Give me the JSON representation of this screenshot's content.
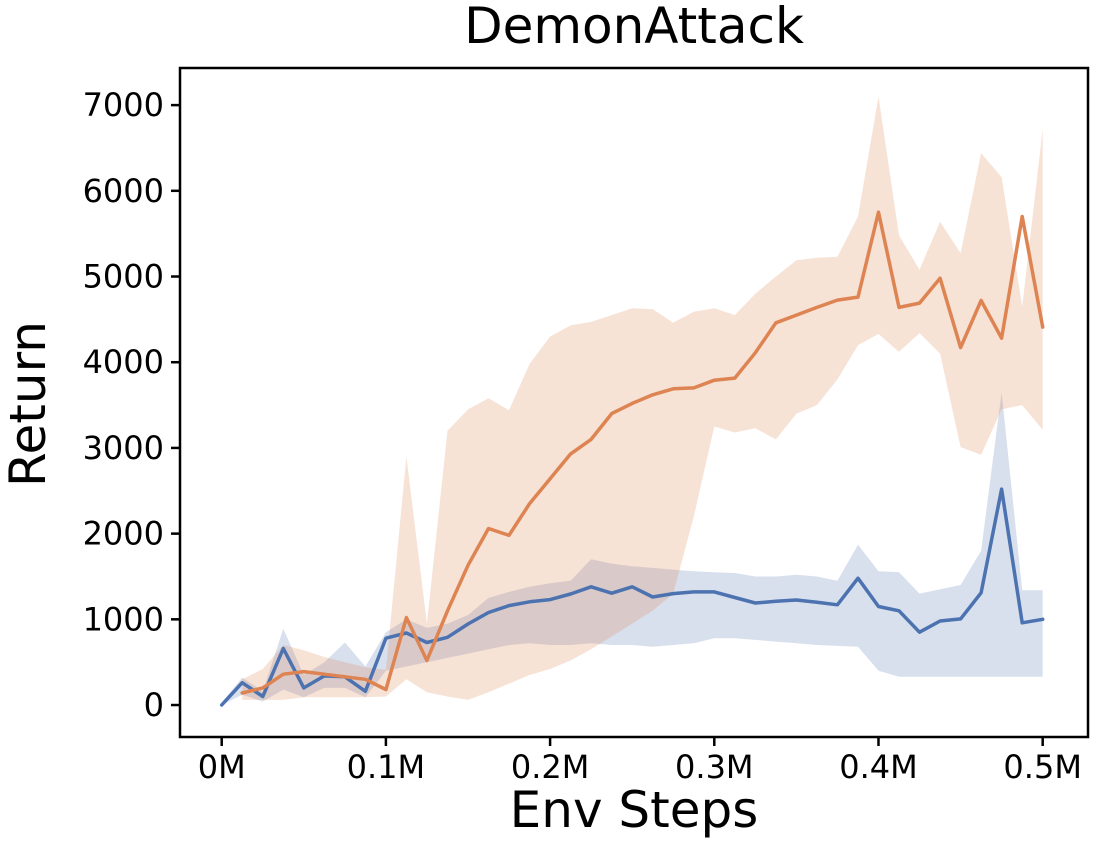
{
  "chart_data": {
    "type": "line",
    "title": "DemonAttack",
    "xlabel": "Env Steps",
    "ylabel": "Return",
    "x_unit": "M (millions of env steps)",
    "x_tick_values": [
      0,
      0.1,
      0.2,
      0.3,
      0.4,
      0.5
    ],
    "x_tick_labels": [
      "0M",
      "0.1M",
      "0.2M",
      "0.3M",
      "0.4M",
      "0.5M"
    ],
    "y_tick_values": [
      0,
      1000,
      2000,
      3000,
      4000,
      5000,
      6000,
      7000
    ],
    "y_tick_labels": [
      "0",
      "1000",
      "2000",
      "3000",
      "4000",
      "5000",
      "6000",
      "7000"
    ],
    "xlim": [
      -0.0254,
      0.5276
    ],
    "ylim": [
      -373,
      7433
    ],
    "grid": false,
    "legend": "none",
    "axis_color": "#000000",
    "background": "#ffffff",
    "series": [
      {
        "name": "blue",
        "color": "#4c72b0",
        "line_width": 3.5,
        "band_opacity": 0.22,
        "x": [
          0,
          0.0125,
          0.025,
          0.0375,
          0.05,
          0.0625,
          0.075,
          0.0875,
          0.1,
          0.1125,
          0.125,
          0.1375,
          0.15,
          0.1625,
          0.175,
          0.1875,
          0.2,
          0.2125,
          0.225,
          0.2375,
          0.25,
          0.2625,
          0.275,
          0.2875,
          0.3,
          0.3125,
          0.325,
          0.3375,
          0.35,
          0.3625,
          0.375,
          0.3875,
          0.4,
          0.4125,
          0.425,
          0.4375,
          0.45,
          0.4625,
          0.475,
          0.4875,
          0.5
        ],
        "y": [
          0,
          260,
          100,
          660,
          200,
          340,
          330,
          160,
          780,
          840,
          730,
          790,
          945,
          1080,
          1160,
          1205,
          1230,
          1295,
          1380,
          1305,
          1380,
          1260,
          1300,
          1320,
          1320,
          1255,
          1190,
          1210,
          1225,
          1200,
          1170,
          1480,
          1150,
          1100,
          850,
          980,
          1005,
          1310,
          2520,
          960,
          1000
        ],
        "band_lo": [
          0,
          120,
          40,
          180,
          90,
          200,
          200,
          90,
          400,
          450,
          500,
          550,
          600,
          650,
          700,
          720,
          700,
          700,
          720,
          700,
          700,
          680,
          700,
          720,
          780,
          780,
          760,
          740,
          720,
          700,
          690,
          680,
          400,
          330,
          330,
          330,
          330,
          330,
          330,
          330,
          330
        ],
        "band_hi": [
          30,
          320,
          160,
          890,
          350,
          500,
          730,
          450,
          850,
          1000,
          900,
          950,
          1050,
          1250,
          1320,
          1380,
          1420,
          1450,
          1700,
          1650,
          1620,
          1600,
          1580,
          1560,
          1550,
          1540,
          1500,
          1500,
          1520,
          1500,
          1450,
          1870,
          1560,
          1550,
          1300,
          1350,
          1400,
          1800,
          3650,
          1340,
          1340
        ]
      },
      {
        "name": "orange",
        "color": "#dd8452",
        "line_width": 3.5,
        "band_opacity": 0.24,
        "x": [
          0.0125,
          0.025,
          0.0375,
          0.05,
          0.0625,
          0.075,
          0.0875,
          0.1,
          0.1125,
          0.125,
          0.1375,
          0.15,
          0.1625,
          0.175,
          0.1875,
          0.2,
          0.2125,
          0.225,
          0.2375,
          0.25,
          0.2625,
          0.275,
          0.2875,
          0.3,
          0.3125,
          0.325,
          0.3375,
          0.35,
          0.3625,
          0.375,
          0.3875,
          0.4,
          0.4125,
          0.425,
          0.4375,
          0.45,
          0.4625,
          0.475,
          0.4875,
          0.5
        ],
        "y": [
          140,
          200,
          360,
          390,
          360,
          330,
          300,
          180,
          1020,
          520,
          1100,
          1630,
          2060,
          1980,
          2350,
          2640,
          2930,
          3100,
          3400,
          3520,
          3620,
          3690,
          3700,
          3790,
          3815,
          4110,
          4460,
          4550,
          4640,
          4725,
          4760,
          5750,
          4640,
          4690,
          4980,
          4170,
          4720,
          4280,
          5700,
          4410
        ],
        "band_lo": [
          60,
          60,
          60,
          90,
          90,
          90,
          90,
          100,
          300,
          150,
          100,
          60,
          150,
          250,
          350,
          420,
          520,
          650,
          800,
          950,
          1100,
          1300,
          2200,
          3250,
          3180,
          3230,
          3100,
          3400,
          3500,
          3800,
          4200,
          4330,
          4120,
          4340,
          4100,
          3010,
          2920,
          3450,
          3500,
          3210
        ],
        "band_hi": [
          300,
          420,
          700,
          640,
          560,
          500,
          440,
          410,
          2900,
          950,
          3200,
          3450,
          3580,
          3440,
          3980,
          4300,
          4430,
          4470,
          4550,
          4630,
          4620,
          4460,
          4590,
          4630,
          4550,
          4800,
          5000,
          5190,
          5220,
          5230,
          5700,
          7100,
          5480,
          5080,
          5640,
          5270,
          6440,
          6160,
          4650,
          6720
        ]
      }
    ]
  }
}
